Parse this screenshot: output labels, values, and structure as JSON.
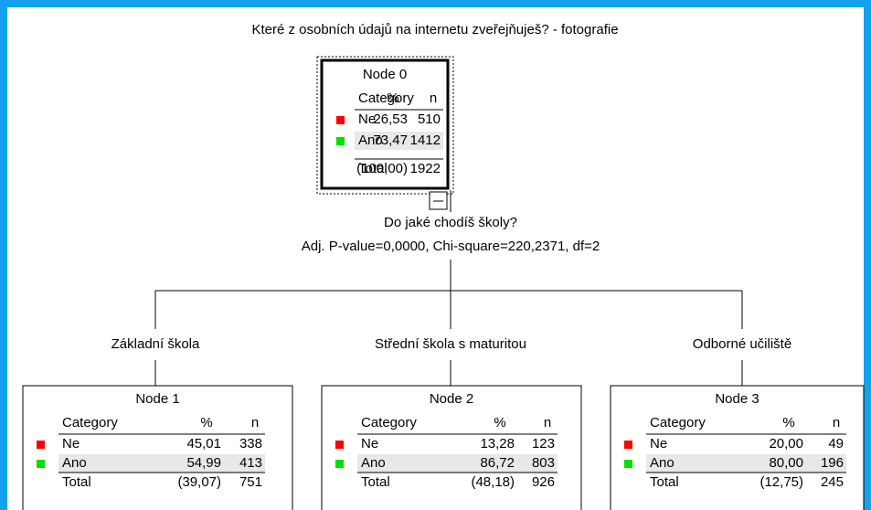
{
  "title": "Které z osobních údajů na internetu zveřejňuješ? - fotografie",
  "split": {
    "question": "Do jaké chodíš školy?",
    "stats": "Adj. P-value=0,0000, Chi-square=220,2371, df=2"
  },
  "branches": [
    "Základní škola",
    "Střední škola s maturitou",
    "Odborné učiliště"
  ],
  "header": [
    "Category",
    "%",
    "n"
  ],
  "nodes": [
    {
      "label": "Node 0",
      "rows": [
        [
          "Ne",
          "26,53",
          "510"
        ],
        [
          "Ano",
          "73,47",
          "1412"
        ],
        [
          "Total",
          "(100,00)",
          "1922"
        ]
      ]
    },
    {
      "label": "Node 1",
      "rows": [
        [
          "Ne",
          "45,01",
          "338"
        ],
        [
          "Ano",
          "54,99",
          "413"
        ],
        [
          "Total",
          "(39,07)",
          "751"
        ]
      ]
    },
    {
      "label": "Node 2",
      "rows": [
        [
          "Ne",
          "13,28",
          "123"
        ],
        [
          "Ano",
          "86,72",
          "803"
        ],
        [
          "Total",
          "(48,18)",
          "926"
        ]
      ]
    },
    {
      "label": "Node 3",
      "rows": [
        [
          "Ne",
          "20,00",
          "49"
        ],
        [
          "Ano",
          "80,00",
          "196"
        ],
        [
          "Total",
          "(12,75)",
          "245"
        ]
      ]
    }
  ]
}
